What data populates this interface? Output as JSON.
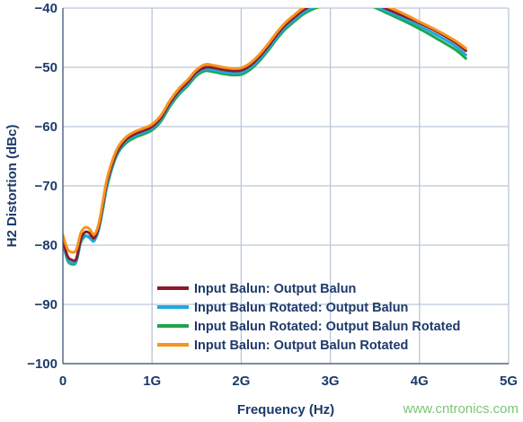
{
  "chart_data": {
    "type": "line",
    "xlabel": "Frequency (Hz)",
    "ylabel": "H2 Distortion (dBc)",
    "xlim": [
      0,
      5000
    ],
    "ylim": [
      -100,
      -40
    ],
    "x_ticks": [
      {
        "value": 0,
        "label": "0"
      },
      {
        "value": 1000,
        "label": "1G"
      },
      {
        "value": 2000,
        "label": "2G"
      },
      {
        "value": 3000,
        "label": "3G"
      },
      {
        "value": 4000,
        "label": "4G"
      },
      {
        "value": 5000,
        "label": "5G"
      }
    ],
    "y_ticks": [
      {
        "value": -40,
        "label": "−40"
      },
      {
        "value": -50,
        "label": "−50"
      },
      {
        "value": -60,
        "label": "−60"
      },
      {
        "value": -70,
        "label": "−70"
      },
      {
        "value": -80,
        "label": "−80"
      },
      {
        "value": -90,
        "label": "−90"
      },
      {
        "value": -100,
        "label": "−100"
      }
    ],
    "grid": true,
    "legend_position": "bottom-right",
    "x": [
      0,
      50,
      100,
      150,
      200,
      250,
      300,
      350,
      400,
      450,
      500,
      600,
      700,
      800,
      900,
      1000,
      1100,
      1200,
      1300,
      1400,
      1500,
      1600,
      1700,
      1800,
      1900,
      2000,
      2100,
      2200,
      2300,
      2400,
      2500,
      2600,
      2700,
      2800,
      2900,
      3000,
      3200,
      3400,
      3500,
      3600,
      3800,
      4000,
      4200,
      4400,
      4520
    ],
    "series": [
      {
        "name": "Input Balun: Output Balun",
        "color": "#8b1a2b",
        "values": [
          -79,
          -81.8,
          -82.5,
          -82.3,
          -79,
          -77.8,
          -78,
          -78.8,
          -77,
          -73,
          -69,
          -64.5,
          -62.3,
          -61.3,
          -60.7,
          -60,
          -58.5,
          -56,
          -54,
          -52.5,
          -50.8,
          -50,
          -50.1,
          -50.4,
          -50.6,
          -50.5,
          -49.7,
          -48.3,
          -46.5,
          -44.5,
          -42.8,
          -41.5,
          -40.3,
          -39.5,
          -39,
          -38.7,
          -38.4,
          -38.6,
          -39.2,
          -39.9,
          -41.2,
          -42.5,
          -44,
          -45.8,
          -47.2
        ]
      },
      {
        "name": "Input Balun Rotated: Output Balun",
        "color": "#1ea9dc",
        "values": [
          -79.3,
          -82.3,
          -83,
          -82.6,
          -79.4,
          -78.4,
          -78.8,
          -79.3,
          -77.3,
          -73.5,
          -69.5,
          -64.8,
          -62.6,
          -61.6,
          -61,
          -60.3,
          -58.8,
          -56.3,
          -54.3,
          -52.8,
          -51.1,
          -50.3,
          -50.5,
          -50.8,
          -51,
          -50.9,
          -50.1,
          -48.7,
          -46.9,
          -44.9,
          -43.2,
          -41.9,
          -40.7,
          -39.9,
          -39.4,
          -39.1,
          -38.8,
          -39,
          -39.6,
          -40.3,
          -41.6,
          -43,
          -44.6,
          -46.4,
          -47.9
        ]
      },
      {
        "name": "Input Balun Rotated: Output Balun Rotated",
        "color": "#1fa64a",
        "values": [
          -79.5,
          -82.5,
          -83.2,
          -82.8,
          -79.6,
          -78.5,
          -78.6,
          -79.1,
          -77.5,
          -73.8,
          -69.8,
          -65,
          -62.9,
          -61.9,
          -61.3,
          -60.6,
          -59.1,
          -56.6,
          -54.6,
          -53.1,
          -51.4,
          -50.6,
          -50.8,
          -51.1,
          -51.3,
          -51.2,
          -50.4,
          -49,
          -47.2,
          -45.2,
          -43.5,
          -42.2,
          -41,
          -40.2,
          -39.7,
          -39.4,
          -39.1,
          -39.3,
          -39.9,
          -40.6,
          -42,
          -43.5,
          -45.2,
          -47,
          -48.5
        ]
      },
      {
        "name": "Input Balun: Output Balun Rotated",
        "color": "#f7941d",
        "values": [
          -78.3,
          -80.6,
          -81.2,
          -80.8,
          -78,
          -77,
          -77.3,
          -78.2,
          -76.5,
          -72.5,
          -68.5,
          -64,
          -61.9,
          -60.9,
          -60.3,
          -59.6,
          -58.1,
          -55.6,
          -53.6,
          -52.1,
          -50.4,
          -49.5,
          -49.7,
          -50,
          -50.2,
          -50.1,
          -49.3,
          -47.9,
          -46.1,
          -44.1,
          -42.4,
          -41.1,
          -39.9,
          -39.1,
          -38.6,
          -38.3,
          -38,
          -38.2,
          -38.8,
          -39.5,
          -40.8,
          -42.3,
          -43.8,
          -45.5,
          -46.8
        ]
      }
    ]
  },
  "watermark": "www.cntronics.com"
}
